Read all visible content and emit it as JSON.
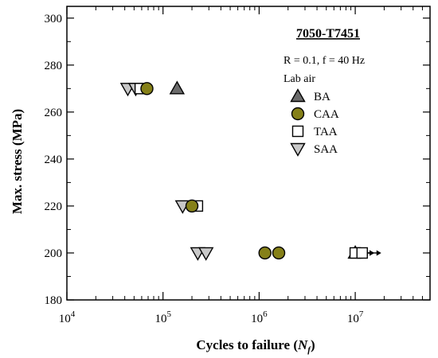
{
  "chart_data": {
    "type": "scatter",
    "title": "7050-T7451",
    "annotations": [
      "R = 0.1, f = 40 Hz",
      "Lab air"
    ],
    "xlabel": "Cycles to failure (",
    "xlabel_symbol": "N",
    "xlabel_subscript": "f",
    "xlabel_suffix": ")",
    "ylabel": "Max. stress (MPa)",
    "x_scale": "log",
    "xlim": [
      10000,
      60000000
    ],
    "ylim": [
      180,
      305
    ],
    "x_ticks": [
      {
        "value": 10000,
        "base": "10",
        "exp": "4"
      },
      {
        "value": 100000,
        "base": "10",
        "exp": "5"
      },
      {
        "value": 1000000,
        "base": "10",
        "exp": "6"
      },
      {
        "value": 10000000,
        "base": "10",
        "exp": "7"
      }
    ],
    "y_ticks": [
      {
        "value": 180,
        "label": "180"
      },
      {
        "value": 200,
        "label": "200"
      },
      {
        "value": 220,
        "label": "220"
      },
      {
        "value": 240,
        "label": "240"
      },
      {
        "value": 260,
        "label": "260"
      },
      {
        "value": 280,
        "label": "280"
      },
      {
        "value": 300,
        "label": "300"
      }
    ],
    "grid": false,
    "legend_position": "right",
    "series": [
      {
        "name": "BA",
        "marker": "triangle-up",
        "color": "#6b6b6b",
        "points": [
          {
            "x": 140000,
            "y": 270
          },
          {
            "x": 10000000,
            "y": 200,
            "runout": true
          }
        ]
      },
      {
        "name": "CAA",
        "marker": "circle",
        "color": "#858018",
        "points": [
          {
            "x": 68000,
            "y": 270
          },
          {
            "x": 200000,
            "y": 220
          },
          {
            "x": 1150000,
            "y": 200
          },
          {
            "x": 1600000,
            "y": 200
          }
        ]
      },
      {
        "name": "TAA",
        "marker": "square",
        "color": "#ffffff",
        "points": [
          {
            "x": 58000,
            "y": 270
          },
          {
            "x": 228000,
            "y": 220
          },
          {
            "x": 10000000,
            "y": 200,
            "runout": true
          },
          {
            "x": 11800000,
            "y": 200,
            "runout": true
          }
        ]
      },
      {
        "name": "SAA",
        "marker": "triangle-down",
        "color": "#c8c8c8",
        "points": [
          {
            "x": 43000,
            "y": 270
          },
          {
            "x": 52000,
            "y": 270
          },
          {
            "x": 160000,
            "y": 220
          },
          {
            "x": 230000,
            "y": 200
          },
          {
            "x": 280000,
            "y": 200
          }
        ]
      }
    ]
  }
}
